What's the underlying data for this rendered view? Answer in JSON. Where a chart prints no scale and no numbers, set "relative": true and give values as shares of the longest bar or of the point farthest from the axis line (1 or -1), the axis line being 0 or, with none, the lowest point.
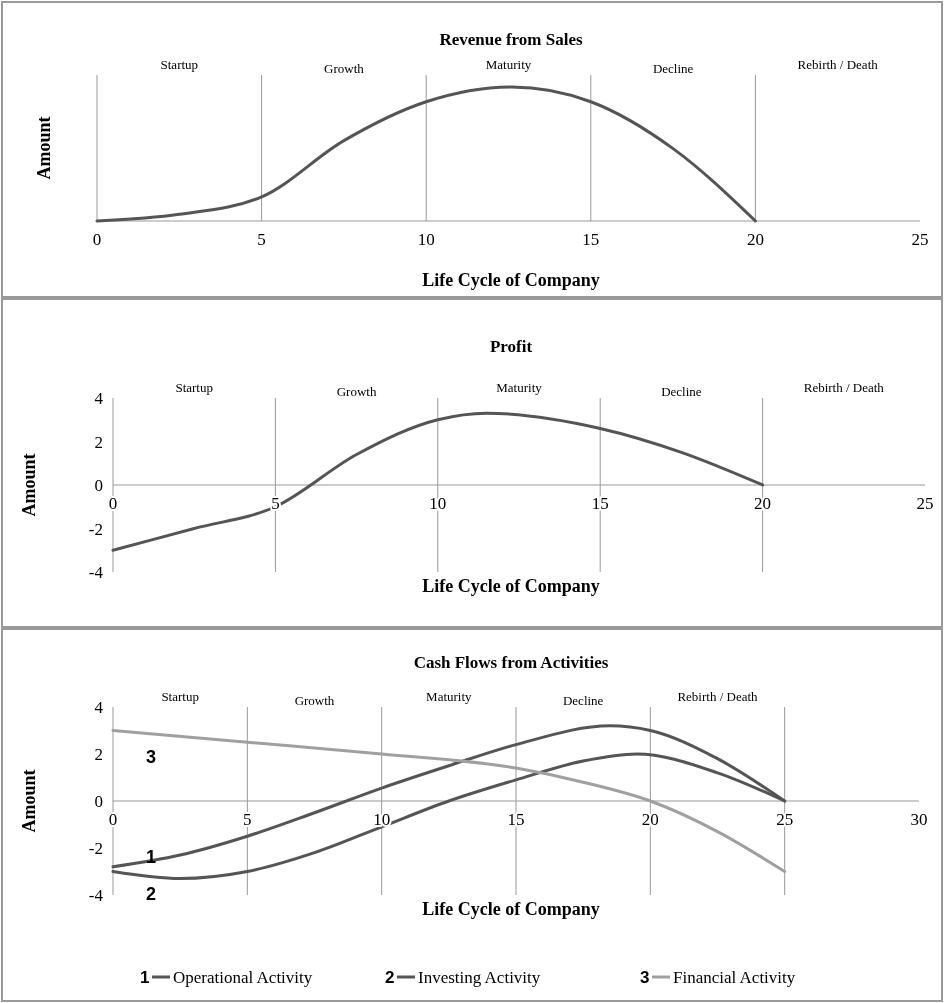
{
  "chart_data": [
    {
      "type": "line",
      "title": "Revenue from Sales",
      "xlabel": "Life Cycle of Company",
      "ylabel": "Amount",
      "relative": true,
      "tick_labels": "x",
      "xlim": [
        0,
        25
      ],
      "xticks": [
        0,
        5,
        10,
        15,
        20,
        25
      ],
      "x": [
        0,
        2.5,
        5,
        7.5,
        10,
        12.6,
        15,
        17.5,
        20
      ],
      "series": [
        {
          "color": "#555555",
          "values": [
            0,
            0.05,
            0.18,
            0.6,
            0.89,
            1,
            0.89,
            0.54,
            0
          ]
        }
      ],
      "ref_lines": [
        {
          "axis": "x",
          "value": 5
        },
        {
          "axis": "x",
          "value": 10
        },
        {
          "axis": "x",
          "value": 15
        },
        {
          "axis": "x",
          "value": 20
        }
      ],
      "annotations": [
        "Startup",
        "Growth",
        "Maturity",
        "Decline",
        "Rebirth / Death"
      ]
    },
    {
      "type": "line",
      "title": "Profit",
      "xlabel": "Life Cycle of Company",
      "ylabel": "Amount",
      "xlim": [
        0,
        25
      ],
      "xticks": [
        0,
        5,
        10,
        15,
        20,
        25
      ],
      "ylim": [
        -4,
        4
      ],
      "yticks": [
        -4,
        -2,
        0,
        2,
        4
      ],
      "x": [
        0,
        2.5,
        5,
        7.5,
        10,
        11.5,
        15,
        17.5,
        20
      ],
      "series": [
        {
          "color": "#555555",
          "values": [
            -3,
            -2,
            -1,
            1.4,
            3,
            3.3,
            2.6,
            1.5,
            0
          ]
        }
      ],
      "ref_lines": [
        {
          "axis": "x",
          "value": 5
        },
        {
          "axis": "x",
          "value": 10
        },
        {
          "axis": "x",
          "value": 15
        },
        {
          "axis": "x",
          "value": 20
        }
      ],
      "annotations": [
        "Startup",
        "Growth",
        "Maturity",
        "Decline",
        "Rebirth / Death"
      ]
    },
    {
      "type": "line",
      "title": "Cash Flows from Activities",
      "xlabel": "Life Cycle of Company",
      "ylabel": "Amount",
      "xlim": [
        0,
        30
      ],
      "xticks": [
        0,
        5,
        10,
        15,
        20,
        25,
        30
      ],
      "ylim": [
        -4,
        4
      ],
      "yticks": [
        -4,
        -2,
        0,
        2,
        4
      ],
      "legend": "bottom",
      "series": [
        {
          "name": "Operational Activity",
          "color": "#555555",
          "x": [
            0,
            2.5,
            5,
            7.5,
            10,
            12.5,
            15,
            18.5,
            20,
            22.5,
            25
          ],
          "values": [
            -2.8,
            -2.3,
            -1.5,
            -0.5,
            0.55,
            1.5,
            2.4,
            3.2,
            3,
            1.8,
            0
          ]
        },
        {
          "name": "Investing Activity",
          "color": "#555555",
          "x": [
            0,
            2.5,
            5,
            7.5,
            10,
            12.5,
            15,
            17.5,
            19.5,
            22.5,
            25
          ],
          "values": [
            -3,
            -3.3,
            -3,
            -2.2,
            -1.1,
            0,
            0.9,
            1.7,
            2,
            1.2,
            0
          ]
        },
        {
          "name": "Financial Activity",
          "color": "#a0a0a0",
          "x": [
            0,
            5,
            10,
            15,
            17.5,
            20,
            22.5,
            25
          ],
          "values": [
            3,
            2.5,
            2,
            1.4,
            0.8,
            0,
            -1.3,
            -3
          ]
        }
      ],
      "annotations": [
        "Startup",
        "Growth",
        "Maturity",
        "Decline",
        "Rebirth / Death",
        "1",
        "2",
        "3"
      ],
      "ref_lines": [
        {
          "axis": "x",
          "value": 5
        },
        {
          "axis": "x",
          "value": 10
        },
        {
          "axis": "x",
          "value": 15
        },
        {
          "axis": "x",
          "value": 20
        },
        {
          "axis": "x",
          "value": 25
        }
      ]
    }
  ]
}
